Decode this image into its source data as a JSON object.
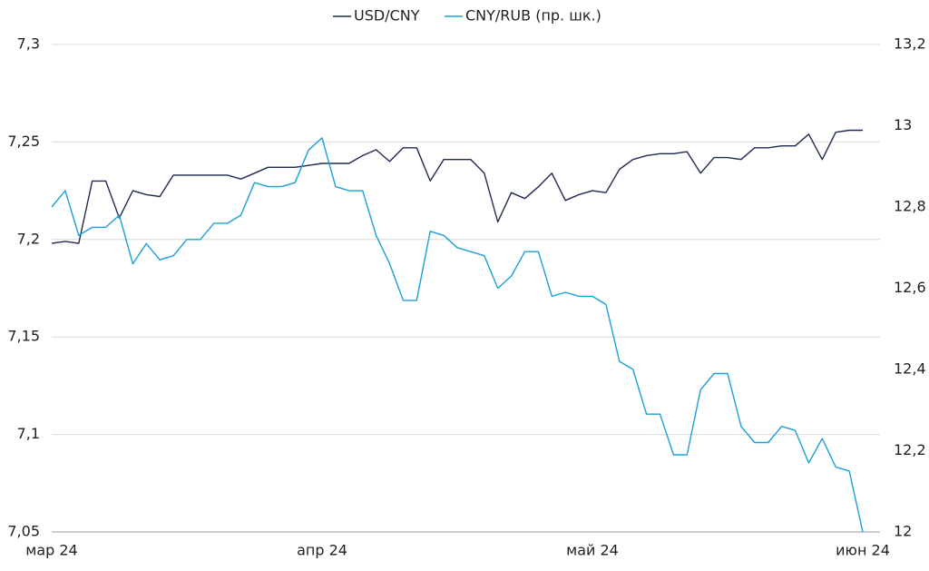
{
  "chart_data": {
    "type": "line",
    "categories": [
      "мар 24",
      null,
      null,
      null,
      null,
      null,
      null,
      null,
      null,
      null,
      null,
      null,
      null,
      null,
      null,
      null,
      null,
      null,
      null,
      null,
      "апр 24",
      null,
      null,
      null,
      null,
      null,
      null,
      null,
      null,
      null,
      null,
      null,
      null,
      null,
      null,
      null,
      null,
      null,
      null,
      null,
      "май 24",
      null,
      null,
      null,
      null,
      null,
      null,
      null,
      null,
      null,
      null,
      null,
      null,
      null,
      null,
      null,
      null,
      null,
      null,
      null,
      "июн 24"
    ],
    "series": [
      {
        "name": "USD/CNY",
        "color": "#1f2a4e",
        "axis": "y",
        "values": [
          7.198,
          7.199,
          7.198,
          7.23,
          7.23,
          7.211,
          7.225,
          7.223,
          7.222,
          7.233,
          7.233,
          7.233,
          7.233,
          7.233,
          7.231,
          7.234,
          7.237,
          7.237,
          7.237,
          7.238,
          7.239,
          7.239,
          7.239,
          7.243,
          7.246,
          7.24,
          7.247,
          7.247,
          7.23,
          7.241,
          7.241,
          7.241,
          7.234,
          7.209,
          7.224,
          7.221,
          7.227,
          7.234,
          7.22,
          7.223,
          7.225,
          7.224,
          7.236,
          7.241,
          7.243,
          7.244,
          7.244,
          7.245,
          7.234,
          7.242,
          7.242,
          7.241,
          7.247,
          7.247,
          7.248,
          7.248,
          7.254,
          7.241,
          7.255,
          7.256,
          7.256
        ]
      },
      {
        "name": "CNY/RUB (пр. шк.)",
        "color": "#1aa0d8",
        "axis": "y2",
        "values": [
          12.8,
          12.84,
          12.73,
          12.75,
          12.75,
          12.78,
          12.66,
          12.71,
          12.67,
          12.68,
          12.72,
          12.72,
          12.76,
          12.76,
          12.78,
          12.86,
          12.85,
          12.85,
          12.86,
          12.94,
          12.97,
          12.85,
          12.84,
          12.84,
          12.73,
          12.66,
          12.57,
          12.57,
          12.74,
          12.73,
          12.7,
          12.69,
          12.68,
          12.6,
          12.63,
          12.69,
          12.69,
          12.58,
          12.59,
          12.58,
          12.58,
          12.56,
          12.42,
          12.4,
          12.29,
          12.29,
          12.19,
          12.19,
          12.35,
          12.39,
          12.39,
          12.26,
          12.22,
          12.22,
          12.26,
          12.25,
          12.17,
          12.23,
          12.16,
          12.15,
          12.0
        ]
      }
    ],
    "ylim": [
      7.05,
      7.3
    ],
    "yticks": [
      {
        "value": 7.05,
        "label": "7,05"
      },
      {
        "value": 7.1,
        "label": "7,1"
      },
      {
        "value": 7.15,
        "label": "7,15"
      },
      {
        "value": 7.2,
        "label": "7,2"
      },
      {
        "value": 7.25,
        "label": "7,25"
      },
      {
        "value": 7.3,
        "label": "7,3"
      }
    ],
    "y2lim": [
      12,
      13.2
    ],
    "y2ticks": [
      12,
      {
        "value": 12.2,
        "label": "12,2"
      },
      {
        "value": 12.4,
        "label": "12,4"
      },
      {
        "value": 12.6,
        "label": "12,6"
      },
      {
        "value": 12.8,
        "label": "12,8"
      },
      13,
      {
        "value": 13.2,
        "label": "13,2"
      }
    ],
    "grid": true,
    "legend": "top"
  }
}
